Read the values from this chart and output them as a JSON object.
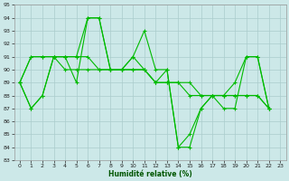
{
  "title": "",
  "xlabel": "Humidité relative (%)",
  "ylabel": "",
  "bg_color": "#cce8e8",
  "grid_color": "#aacccc",
  "line_color": "#00bb00",
  "xlim": [
    -0.5,
    23.5
  ],
  "ylim": [
    83,
    95
  ],
  "xticks": [
    0,
    1,
    2,
    3,
    4,
    5,
    6,
    7,
    8,
    9,
    10,
    11,
    12,
    13,
    14,
    15,
    16,
    17,
    18,
    19,
    20,
    21,
    22,
    23
  ],
  "yticks": [
    83,
    84,
    85,
    86,
    87,
    88,
    89,
    90,
    91,
    92,
    93,
    94,
    95
  ],
  "series": [
    [
      89,
      87,
      88,
      91,
      91,
      91,
      94,
      94,
      90,
      90,
      91,
      93,
      90,
      90,
      84,
      84,
      87,
      88,
      88,
      89,
      91,
      91,
      87
    ],
    [
      89,
      87,
      88,
      91,
      91,
      89,
      94,
      94,
      90,
      90,
      91,
      90,
      89,
      90,
      84,
      85,
      87,
      88,
      87,
      87,
      91,
      91,
      87
    ],
    [
      89,
      91,
      91,
      91,
      91,
      91,
      91,
      90,
      90,
      90,
      90,
      90,
      89,
      89,
      89,
      89,
      88,
      88,
      88,
      88,
      88,
      88,
      87
    ],
    [
      89,
      91,
      91,
      91,
      90,
      90,
      90,
      90,
      90,
      90,
      90,
      90,
      89,
      89,
      89,
      88,
      88,
      88,
      88,
      88,
      88,
      88,
      87
    ]
  ]
}
